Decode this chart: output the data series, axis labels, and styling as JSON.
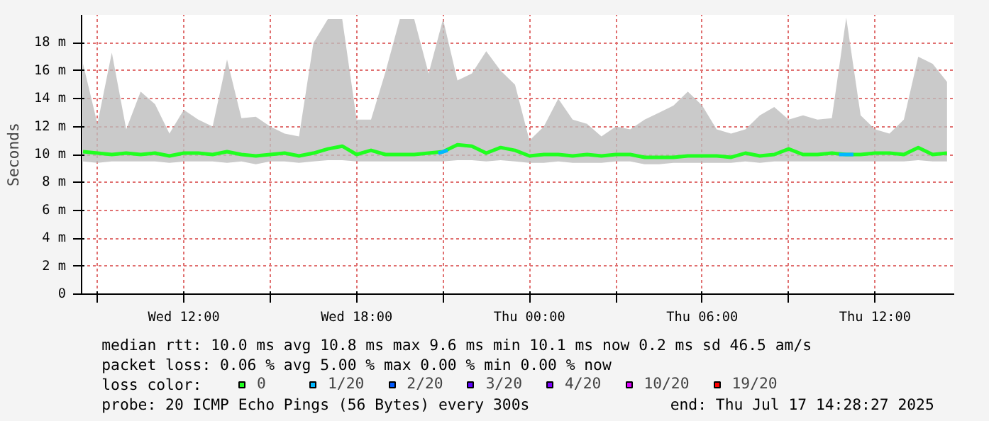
{
  "chart_data": {
    "type": "line",
    "ylabel": "Seconds",
    "x": [
      "2025-07-16T08:30",
      "2025-07-16T09:00",
      "2025-07-16T09:30",
      "2025-07-16T10:00",
      "2025-07-16T10:30",
      "2025-07-16T11:00",
      "2025-07-16T11:30",
      "2025-07-16T12:00",
      "2025-07-16T12:30",
      "2025-07-16T13:00",
      "2025-07-16T13:30",
      "2025-07-16T14:00",
      "2025-07-16T14:30",
      "2025-07-16T15:00",
      "2025-07-16T15:30",
      "2025-07-16T16:00",
      "2025-07-16T16:30",
      "2025-07-16T17:00",
      "2025-07-16T17:30",
      "2025-07-16T18:00",
      "2025-07-16T18:30",
      "2025-07-16T19:00",
      "2025-07-16T19:30",
      "2025-07-16T20:00",
      "2025-07-16T20:30",
      "2025-07-16T21:00",
      "2025-07-16T21:30",
      "2025-07-16T22:00",
      "2025-07-16T22:30",
      "2025-07-16T23:00",
      "2025-07-16T23:30",
      "2025-07-17T00:00",
      "2025-07-17T00:30",
      "2025-07-17T01:00",
      "2025-07-17T01:30",
      "2025-07-17T02:00",
      "2025-07-17T02:30",
      "2025-07-17T03:00",
      "2025-07-17T03:30",
      "2025-07-17T04:00",
      "2025-07-17T04:30",
      "2025-07-17T05:00",
      "2025-07-17T05:30",
      "2025-07-17T06:00",
      "2025-07-17T06:30",
      "2025-07-17T07:00",
      "2025-07-17T07:30",
      "2025-07-17T08:00",
      "2025-07-17T08:30",
      "2025-07-17T09:00",
      "2025-07-17T09:30",
      "2025-07-17T10:00",
      "2025-07-17T10:30",
      "2025-07-17T11:00",
      "2025-07-17T11:30",
      "2025-07-17T12:00",
      "2025-07-17T12:30",
      "2025-07-17T13:00",
      "2025-07-17T13:30",
      "2025-07-17T14:00",
      "2025-07-17T14:30"
    ],
    "series": [
      {
        "name": "0",
        "color": "#20ff20",
        "values": [
          10.2,
          10.1,
          10.0,
          10.1,
          10.0,
          10.1,
          9.9,
          10.1,
          10.1,
          10.0,
          10.2,
          10.0,
          9.9,
          10.0,
          10.1,
          9.9,
          10.1,
          10.4,
          10.6,
          10.0,
          10.3,
          10.0,
          10.0,
          10.0,
          10.1,
          10.2,
          10.7,
          10.6,
          10.1,
          10.5,
          10.3,
          9.9,
          10.0,
          10.0,
          9.9,
          10.0,
          9.9,
          10.0,
          10.0,
          9.8,
          9.8,
          9.8,
          9.9,
          9.9,
          9.9,
          9.8,
          10.1,
          9.9,
          10.0,
          10.4,
          10.0,
          10.0,
          10.1,
          10.0,
          10.0,
          10.1,
          10.1,
          10.0,
          10.5,
          10.0,
          10.1
        ],
        "lower": [
          9.5,
          9.4,
          9.5,
          9.5,
          9.5,
          9.5,
          9.4,
          9.5,
          9.5,
          9.5,
          9.4,
          9.5,
          9.3,
          9.5,
          9.5,
          9.4,
          9.5,
          9.6,
          9.6,
          9.5,
          9.5,
          9.5,
          9.5,
          9.5,
          9.5,
          9.5,
          9.6,
          9.6,
          9.5,
          9.6,
          9.5,
          9.4,
          9.4,
          9.5,
          9.4,
          9.4,
          9.4,
          9.5,
          9.5,
          9.3,
          9.3,
          9.4,
          9.4,
          9.4,
          9.4,
          9.4,
          9.5,
          9.4,
          9.5,
          9.5,
          9.5,
          9.5,
          9.5,
          9.5,
          9.5,
          9.5,
          9.5,
          9.5,
          9.6,
          9.5,
          9.5
        ],
        "upper": [
          16.5,
          12.2,
          17.3,
          11.8,
          14.5,
          13.6,
          11.5,
          13.2,
          12.5,
          12.0,
          16.8,
          12.6,
          12.7,
          12.0,
          11.5,
          11.3,
          18.0,
          19.7,
          19.7,
          12.5,
          12.5,
          15.9,
          19.7,
          19.7,
          15.8,
          19.7,
          15.3,
          15.8,
          17.4,
          16.0,
          15.0,
          11.0,
          12.0,
          14.0,
          12.5,
          12.2,
          11.3,
          12.0,
          11.8,
          12.5,
          13.0,
          13.5,
          14.5,
          13.5,
          11.8,
          11.5,
          11.8,
          12.8,
          13.4,
          12.5,
          12.8,
          12.5,
          12.6,
          19.8,
          12.8,
          11.8,
          11.5,
          12.5,
          17.0,
          16.5,
          15.2
        ]
      },
      {
        "name": "1/20",
        "color": "#00b8ff",
        "x": [
          "2025-07-16T20:50",
          "2025-07-16T21:10",
          "2025-07-16T21:11",
          "2025-07-17T10:45",
          "2025-07-17T11:15"
        ],
        "values": [
          10.1,
          10.3,
          null,
          10.0,
          10.0
        ]
      },
      {
        "name": "2/20",
        "color": "#0059ff",
        "values": [
          null,
          null,
          null,
          null,
          null,
          null,
          null,
          null,
          null,
          null,
          null,
          null,
          null,
          null,
          null,
          null,
          null,
          null,
          null,
          null,
          null,
          null,
          null,
          null,
          null,
          null,
          null,
          null,
          null,
          null,
          null,
          null,
          null,
          null,
          null,
          null,
          null,
          null,
          null,
          null,
          null,
          null,
          null,
          null,
          null,
          null,
          null,
          null,
          null,
          null,
          null,
          null,
          null,
          null,
          null,
          null,
          null,
          null,
          null,
          null,
          null
        ]
      },
      {
        "name": "3/20",
        "color": "#5e00ff",
        "values": [
          null,
          null,
          null,
          null,
          null,
          null,
          null,
          null,
          null,
          null,
          null,
          null,
          null,
          null,
          null,
          null,
          null,
          null,
          null,
          null,
          null,
          null,
          null,
          null,
          null,
          null,
          null,
          null,
          null,
          null,
          null,
          null,
          null,
          null,
          null,
          null,
          null,
          null,
          null,
          null,
          null,
          null,
          null,
          null,
          null,
          null,
          null,
          null,
          null,
          null,
          null,
          null,
          null,
          null,
          null,
          null,
          null,
          null,
          null,
          null,
          null
        ]
      },
      {
        "name": "4/20",
        "color": "#7e00ff",
        "values": [
          null,
          null,
          null,
          null,
          null,
          null,
          null,
          null,
          null,
          null,
          null,
          null,
          null,
          null,
          null,
          null,
          null,
          null,
          null,
          null,
          null,
          null,
          null,
          null,
          null,
          null,
          null,
          null,
          null,
          null,
          null,
          null,
          null,
          null,
          null,
          null,
          null,
          null,
          null,
          null,
          null,
          null,
          null,
          null,
          null,
          null,
          null,
          null,
          null,
          null,
          null,
          null,
          null,
          null,
          null,
          null,
          null,
          null,
          null,
          null,
          null
        ]
      },
      {
        "name": "10/20",
        "color": "#dd00ff",
        "values": [
          null,
          null,
          null,
          null,
          null,
          null,
          null,
          null,
          null,
          null,
          null,
          null,
          null,
          null,
          null,
          null,
          null,
          null,
          null,
          null,
          null,
          null,
          null,
          null,
          null,
          null,
          null,
          null,
          null,
          null,
          null,
          null,
          null,
          null,
          null,
          null,
          null,
          null,
          null,
          null,
          null,
          null,
          null,
          null,
          null,
          null,
          null,
          null,
          null,
          null,
          null,
          null,
          null,
          null,
          null,
          null,
          null,
          null,
          null,
          null,
          null
        ]
      },
      {
        "name": "19/20",
        "color": "#ff0000",
        "values": [
          null,
          null,
          null,
          null,
          null,
          null,
          null,
          null,
          null,
          null,
          null,
          null,
          null,
          null,
          null,
          null,
          null,
          null,
          null,
          null,
          null,
          null,
          null,
          null,
          null,
          null,
          null,
          null,
          null,
          null,
          null,
          null,
          null,
          null,
          null,
          null,
          null,
          null,
          null,
          null,
          null,
          null,
          null,
          null,
          null,
          null,
          null,
          null,
          null,
          null,
          null,
          null,
          null,
          null,
          null,
          null,
          null,
          null,
          null,
          null,
          null
        ]
      }
    ],
    "legend": "bottom",
    "legend_title": "loss color:",
    "grid": true,
    "xlim": [
      "2025-07-16T08:27",
      "2025-07-17T14:45"
    ],
    "xticks": [
      {
        "value": "2025-07-16T09:00",
        "label": null
      },
      {
        "value": "2025-07-16T12:00",
        "label": "Wed 12:00"
      },
      {
        "value": "2025-07-16T15:00",
        "label": null
      },
      {
        "value": "2025-07-16T18:00",
        "label": "Wed 18:00"
      },
      {
        "value": "2025-07-16T21:00",
        "label": null
      },
      {
        "value": "2025-07-17T00:00",
        "label": "Thu 00:00"
      },
      {
        "value": "2025-07-17T03:00",
        "label": null
      },
      {
        "value": "2025-07-17T06:00",
        "label": "Thu 06:00"
      },
      {
        "value": "2025-07-17T09:00",
        "label": null
      },
      {
        "value": "2025-07-17T12:00",
        "label": "Thu 12:00"
      }
    ],
    "ylim": [
      0,
      20
    ],
    "yticks": [
      0,
      {
        "value": 2,
        "label": "2 m"
      },
      {
        "value": 4,
        "label": "4 m"
      },
      {
        "value": 6,
        "label": "6 m"
      },
      {
        "value": 8,
        "label": "8 m"
      },
      {
        "value": 10,
        "label": "10 m"
      },
      {
        "value": 12,
        "label": "12 m"
      },
      {
        "value": 14,
        "label": "14 m"
      },
      {
        "value": 16,
        "label": "16 m"
      },
      {
        "value": 18,
        "label": "18 m"
      }
    ],
    "annotations": [
      "median rtt:  10.0 ms avg  10.8 ms max  9.6 ms min  10.1 ms now  0.2 ms sd  46.5   am/s",
      "packet loss: 0.06 % avg  5.00 % max  0.00 % min  0.00 % now",
      "probe:       20 ICMP Echo Pings (56 Bytes) every 300s",
      "end: Thu Jul 17 14:28:27 2025"
    ]
  }
}
